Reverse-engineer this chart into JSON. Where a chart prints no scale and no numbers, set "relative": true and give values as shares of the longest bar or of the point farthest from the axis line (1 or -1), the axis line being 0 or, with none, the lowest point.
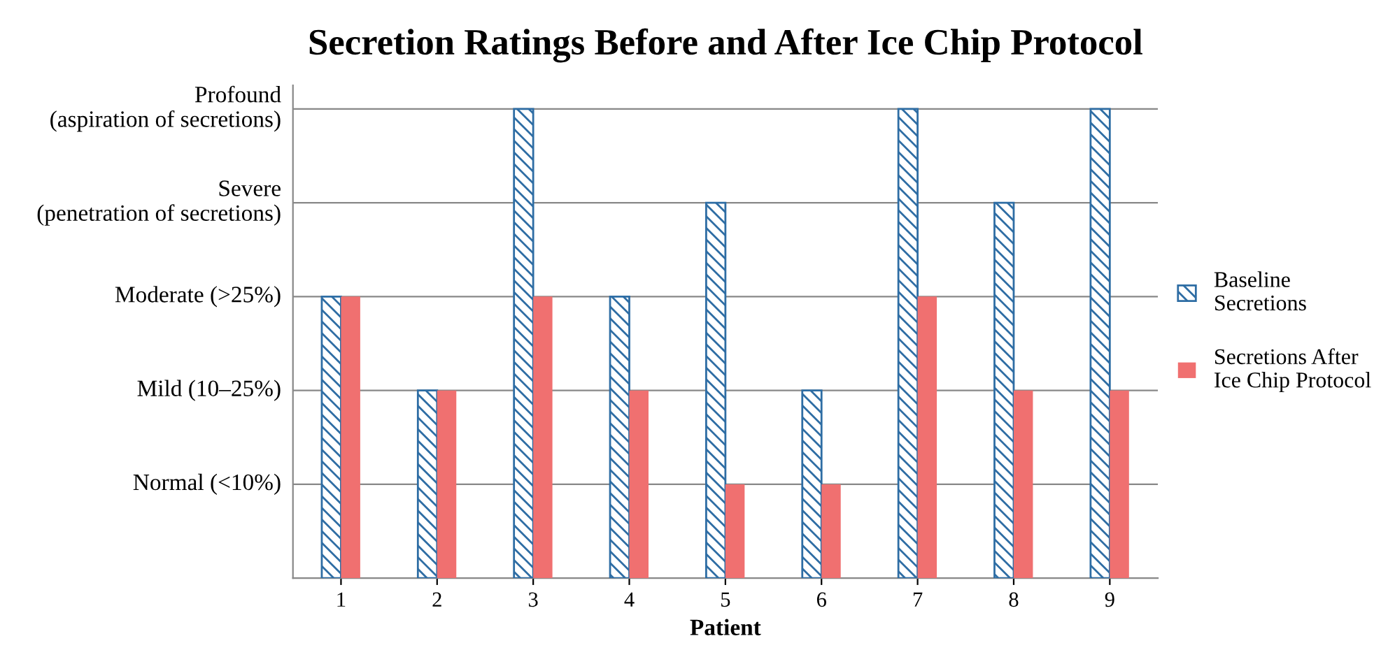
{
  "chart_data": {
    "type": "bar",
    "title": "Secretion Ratings Before and After Ice Chip Protocol",
    "xlabel": "Patient",
    "categories": [
      "1",
      "2",
      "3",
      "4",
      "5",
      "6",
      "7",
      "8",
      "9"
    ],
    "relative": true,
    "series": [
      {
        "name": "Baseline\nSecretions",
        "color": "#2e6da4",
        "values": [
          0.6,
          0.4,
          1,
          0.6,
          0.8,
          0.4,
          1,
          0.8,
          1
        ]
      },
      {
        "name": "Secretions After\nIce Chip Protocol",
        "color": "#f07070",
        "values": [
          0.6,
          0.4,
          0.6,
          0.4,
          0.2,
          0.2,
          0.6,
          0.4,
          0.4
        ]
      }
    ],
    "ref_lines": [
      {
        "axis": "y",
        "value": 0.2,
        "label": "Normal (<10%)",
        "color": "#888888"
      },
      {
        "axis": "y",
        "value": 0.4,
        "label": "Mild (10–25%)",
        "color": "#888888"
      },
      {
        "axis": "y",
        "value": 0.6,
        "label": "Moderate (>25%)",
        "color": "#888888"
      },
      {
        "axis": "y",
        "value": 0.8,
        "label": "Severe\n(penetration of secretions)",
        "color": "#888888"
      },
      {
        "axis": "y",
        "value": 1,
        "label": "Profound\n(aspiration of secretions)",
        "color": "#888888"
      }
    ],
    "legend": "right"
  }
}
